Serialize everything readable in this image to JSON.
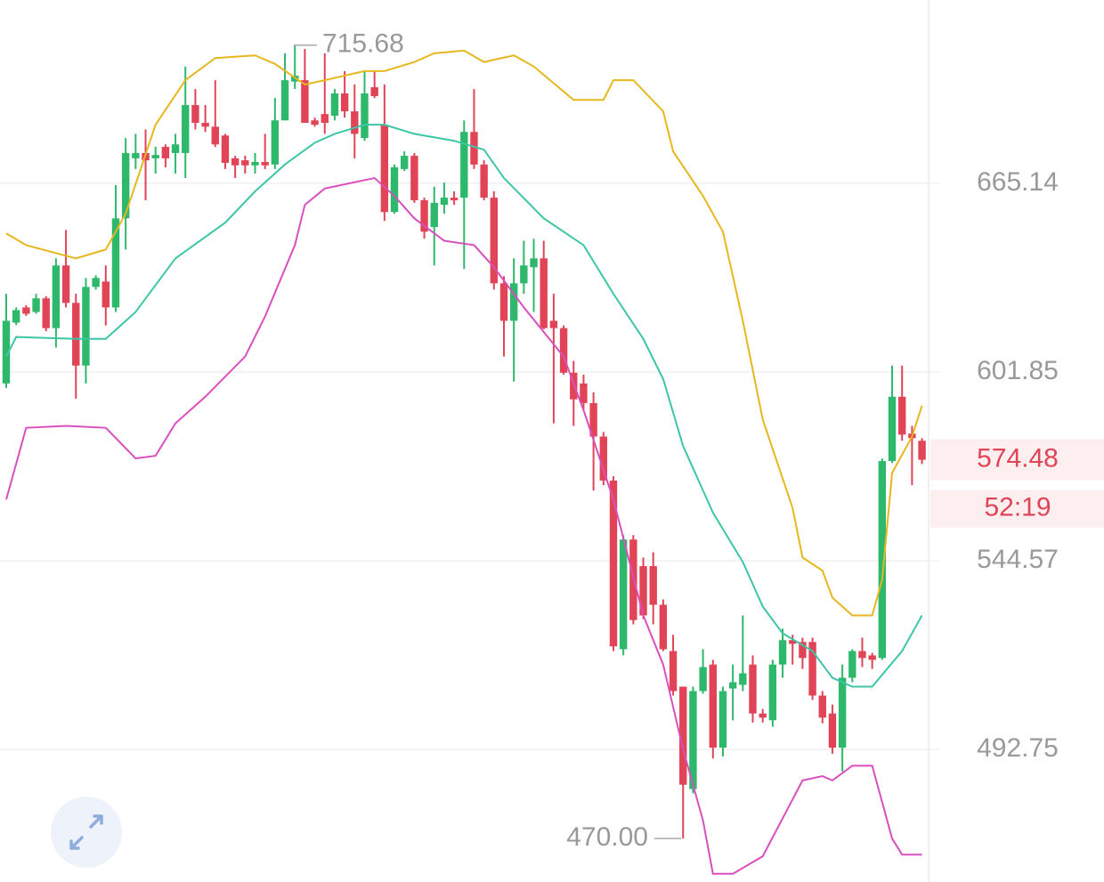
{
  "chart_data": {
    "type": "candlestick",
    "log_scale": true,
    "grid": true,
    "up_color": "#2eb86b",
    "down_color": "#e04456",
    "ylim": [
      459.3,
      733.0
    ],
    "yticks": [
      492.75,
      544.57,
      601.85,
      665.14
    ],
    "candles": {
      "open": [
        598.2,
        617.8,
        622.8,
        621.3,
        625.8,
        616.0,
        636.8,
        624.3,
        603.9,
        629.6,
        631.4,
        622.8,
        652.9,
        674.0,
        675.9,
        674.0,
        678.1,
        675.9,
        675.9,
        693.3,
        686.8,
        685.4,
        682.2,
        674.0,
        673.3,
        671.5,
        672.7,
        671.8,
        687.7,
        702.0,
        702.5,
        687.7,
        690.0,
        689.4,
        697.6,
        691.0,
        681.3,
        699.9,
        686.1,
        655.1,
        670.2,
        674.9,
        659.2,
        649.9,
        657.6,
        660.1,
        660.1,
        683.5,
        671.8,
        660.1,
        630.8,
        618.4,
        630.8,
        636.2,
        639.2,
        618.4,
        616.0,
        601.6,
        598.2,
        592.0,
        581.6,
        568.2,
        519.6,
        550.7,
        543.0,
        543.0,
        532.0,
        519.1,
        509.4,
        482.5,
        508.2,
        515.4,
        493.2,
        508.9,
        509.9,
        515.4,
        502.2,
        500.4,
        515.4,
        522.1,
        521.6,
        521.6,
        507.0,
        502.2,
        493.2,
        511.8,
        519.1,
        517.9,
        517.2,
        574.1,
        594.0,
        582.5,
        580.3
      ],
      "high": [
        627.3,
        622.8,
        623.5,
        627.3,
        626.5,
        639.2,
        648.9,
        627.3,
        632.6,
        633.5,
        636.8,
        664.5,
        681.3,
        682.8,
        684.4,
        678.1,
        679.0,
        682.8,
        707.6,
        699.2,
        693.3,
        702.5,
        682.8,
        674.9,
        674.9,
        675.9,
        682.8,
        695.9,
        712.6,
        715.68,
        714.2,
        688.7,
        712.6,
        699.2,
        705.9,
        700.9,
        705.9,
        705.9,
        700.9,
        671.8,
        676.5,
        675.9,
        660.1,
        663.9,
        665.4,
        662.3,
        687.7,
        699.2,
        673.3,
        662.3,
        633.2,
        639.2,
        645.2,
        645.9,
        645.2,
        627.3,
        616.9,
        605.4,
        601.0,
        595.4,
        583.0,
        569.5,
        552.0,
        552.0,
        545.5,
        547.0,
        533.5,
        523.6,
        509.4,
        509.4,
        519.6,
        516.7,
        509.4,
        515.4,
        529.0,
        517.9,
        503.4,
        516.7,
        525.3,
        523.6,
        522.8,
        522.8,
        508.2,
        504.6,
        515.4,
        519.6,
        522.8,
        518.6,
        574.9,
        603.9,
        603.9,
        584.9,
        581.1
      ],
      "low": [
        596.8,
        617.0,
        620.0,
        620.7,
        615.0,
        609.7,
        622.8,
        593.4,
        598.2,
        628.7,
        616.9,
        621.3,
        642.2,
        670.2,
        659.2,
        668.6,
        670.8,
        668.6,
        667.0,
        684.4,
        683.5,
        678.1,
        670.2,
        667.0,
        668.6,
        668.6,
        670.2,
        670.2,
        687.7,
        699.2,
        686.8,
        685.4,
        682.8,
        687.7,
        688.7,
        674.0,
        680.3,
        695.9,
        652.0,
        654.5,
        669.5,
        658.3,
        645.9,
        636.8,
        654.5,
        657.6,
        635.6,
        670.2,
        659.2,
        628.7,
        606.8,
        598.8,
        627.3,
        621.3,
        615.6,
        585.7,
        601.0,
        584.9,
        589.8,
        565.2,
        566.8,
        519.1,
        517.9,
        526.5,
        528.0,
        526.5,
        519.1,
        507.0,
        470.0,
        481.4,
        507.5,
        490.4,
        490.9,
        500.4,
        508.2,
        499.8,
        499.8,
        498.7,
        511.8,
        515.4,
        514.2,
        505.8,
        499.6,
        491.6,
        487.0,
        510.6,
        514.7,
        514.2,
        516.7,
        573.5,
        580.3,
        566.8,
        573.2
      ],
      "close": [
        618.4,
        621.9,
        620.7,
        625.8,
        616.0,
        636.8,
        624.3,
        603.9,
        629.6,
        632.6,
        622.8,
        652.9,
        675.9,
        675.9,
        673.3,
        675.2,
        674.0,
        679.0,
        693.3,
        686.8,
        685.4,
        679.0,
        672.4,
        671.5,
        671.5,
        672.7,
        671.5,
        687.7,
        702.5,
        704.2,
        686.8,
        686.1,
        686.8,
        697.6,
        691.0,
        682.8,
        697.6,
        696.6,
        655.1,
        670.8,
        674.9,
        659.2,
        648.3,
        658.3,
        660.1,
        659.2,
        683.5,
        671.8,
        660.1,
        630.8,
        618.4,
        630.8,
        636.8,
        639.2,
        616.0,
        616.0,
        601.6,
        593.2,
        592.0,
        581.6,
        568.2,
        520.4,
        550.7,
        527.7,
        529.0,
        532.0,
        519.6,
        508.2,
        483.6,
        508.2,
        514.7,
        493.2,
        508.2,
        510.6,
        513.0,
        502.2,
        501.1,
        515.4,
        522.1,
        521.1,
        517.2,
        507.0,
        501.1,
        493.2,
        511.8,
        519.1,
        517.2,
        516.7,
        574.1,
        594.0,
        582.2,
        581.1,
        574.48
      ]
    },
    "lines": [
      {
        "color": "#e6b71e",
        "x": [
          0,
          2,
          7,
          10,
          12,
          15,
          18,
          21,
          25,
          27,
          30,
          32,
          36,
          38,
          41,
          43,
          46,
          48,
          51,
          53,
          57,
          60,
          61,
          63,
          66,
          67,
          70,
          72,
          74,
          76,
          79,
          80,
          82,
          83,
          85,
          87,
          88,
          89,
          91,
          92
        ],
        "values": [
          647.7,
          643.7,
          639.2,
          642.2,
          654.5,
          686.1,
          702.5,
          710.8,
          711.8,
          708.6,
          700.9,
          702.5,
          705.9,
          705.9,
          709.3,
          712.6,
          713.6,
          709.3,
          711.8,
          707.6,
          695.2,
          695.2,
          702.5,
          702.5,
          691.0,
          676.5,
          660.7,
          648.3,
          618.4,
          586.9,
          560.0,
          545.5,
          541.7,
          534.0,
          529.0,
          529.0,
          539.1,
          570.5,
          581.6,
          591.2
        ]
      },
      {
        "color": "#3cc6a6",
        "x": [
          0,
          1,
          7,
          10,
          13,
          17,
          22,
          25,
          28,
          31,
          33,
          36,
          38,
          41,
          45,
          48,
          50,
          54,
          58,
          61,
          64,
          66,
          68,
          71,
          74,
          76,
          78,
          81,
          83,
          85,
          87,
          90,
          92
        ],
        "values": [
          606.8,
          613.1,
          612.5,
          612.5,
          621.3,
          639.2,
          651.4,
          662.3,
          671.8,
          679.6,
          682.8,
          686.1,
          686.1,
          682.8,
          680.3,
          677.1,
          667.0,
          652.9,
          643.7,
          627.3,
          612.5,
          599.6,
          578.7,
          558.6,
          544.2,
          531.5,
          524.0,
          519.1,
          511.8,
          509.4,
          509.4,
          519.1,
          529.0
        ]
      },
      {
        "color": "#d84fbd",
        "x": [
          0,
          2,
          6,
          10,
          13,
          15,
          17,
          20,
          24,
          26,
          29,
          30,
          32,
          37,
          39,
          41,
          44,
          47,
          49,
          52,
          56,
          58,
          61,
          64,
          66,
          68,
          70,
          71,
          73,
          76,
          80,
          82,
          83,
          85,
          87,
          89,
          90,
          92
        ],
        "values": [
          562.5,
          584.3,
          584.9,
          584.3,
          574.9,
          575.7,
          585.7,
          594.0,
          606.8,
          619.8,
          643.7,
          657.6,
          663.3,
          667.0,
          660.7,
          652.9,
          645.2,
          643.7,
          636.2,
          622.8,
          606.8,
          589.8,
          562.5,
          529.0,
          515.4,
          492.8,
          474.5,
          461.3,
          461.3,
          465.6,
          484.7,
          485.8,
          484.7,
          488.5,
          488.5,
          470.0,
          466.0,
          466.0
        ]
      }
    ],
    "max_label": {
      "value": 715.68
    },
    "min_label": {
      "value": 470,
      "label": "470.00"
    },
    "last_price": 574.48,
    "countdown": "52:19"
  }
}
